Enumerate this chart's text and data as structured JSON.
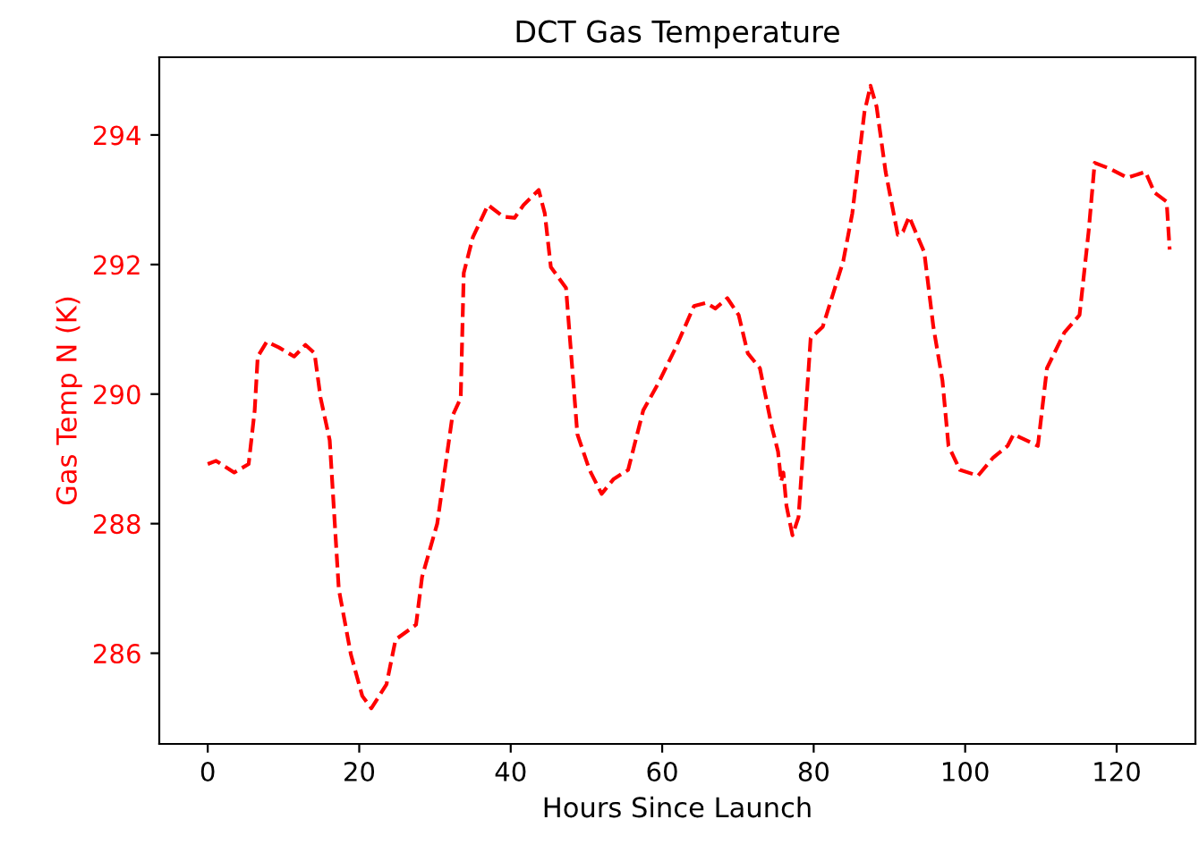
{
  "chart_data": {
    "type": "line",
    "title": "DCT Gas Temperature",
    "xlabel": "Hours Since Launch",
    "ylabel": "Gas Temp N (K)",
    "line_style": "dashed",
    "marker": "none",
    "grid": false,
    "legend": false,
    "xlim": [
      -6.4,
      130.4
    ],
    "ylim": [
      284.6,
      295.2
    ],
    "xticks": [
      0,
      20,
      40,
      60,
      80,
      100,
      120
    ],
    "yticks": [
      286,
      288,
      290,
      292,
      294
    ],
    "series": [
      {
        "color": "#ff0000",
        "x": [
          0,
          1.1,
          3.5,
          5.4,
          6.2,
          6.6,
          7.8,
          9.4,
          11.4,
          12.9,
          14.1,
          14.9,
          16.1,
          17.3,
          18.9,
          20.4,
          21.6,
          23.6,
          24.8,
          27.5,
          28.3,
          30.3,
          32.3,
          33.4,
          33.8,
          35.0,
          37.0,
          39.0,
          40.5,
          41.7,
          43.7,
          44.5,
          45.3,
          47.3,
          48.8,
          50.4,
          52.0,
          53.6,
          55.5,
          57.5,
          59.5,
          61.8,
          64.2,
          65.8,
          67.0,
          68.6,
          70.1,
          71.3,
          72.9,
          74.5,
          75.3,
          75.7,
          76.0,
          76.4,
          77.2,
          78.0,
          79.6,
          81.2,
          83.9,
          85.1,
          86.7,
          87.5,
          88.3,
          89.5,
          91.1,
          91.8,
          92.6,
          94.6,
          95.8,
          97.0,
          97.8,
          99.3,
          101.7,
          103.7,
          105.6,
          106.4,
          109.6,
          110.8,
          113.1,
          115.1,
          116.3,
          117.1,
          119.1,
          121.4,
          123.8,
          125.0,
          126.6,
          127.0
        ],
        "values": [
          288.92,
          288.97,
          288.79,
          288.92,
          289.75,
          290.58,
          290.81,
          290.72,
          290.58,
          290.76,
          290.63,
          289.94,
          289.29,
          286.99,
          285.98,
          285.34,
          285.15,
          285.52,
          286.21,
          286.44,
          287.18,
          288.0,
          289.66,
          289.94,
          291.87,
          292.42,
          292.92,
          292.74,
          292.72,
          292.92,
          293.15,
          292.79,
          291.96,
          291.64,
          289.38,
          288.83,
          288.46,
          288.69,
          288.83,
          289.75,
          290.17,
          290.72,
          291.36,
          291.41,
          291.32,
          291.48,
          291.22,
          290.63,
          290.4,
          289.48,
          289.11,
          288.65,
          288.79,
          288.28,
          287.82,
          288.1,
          290.86,
          291.04,
          292.05,
          292.79,
          294.35,
          294.76,
          294.44,
          293.43,
          292.46,
          292.51,
          292.74,
          292.19,
          291.04,
          290.21,
          289.2,
          288.83,
          288.74,
          289.02,
          289.2,
          289.38,
          289.2,
          290.4,
          290.95,
          291.22,
          292.51,
          293.57,
          293.48,
          293.34,
          293.43,
          293.11,
          292.97,
          292.23
        ]
      }
    ]
  }
}
